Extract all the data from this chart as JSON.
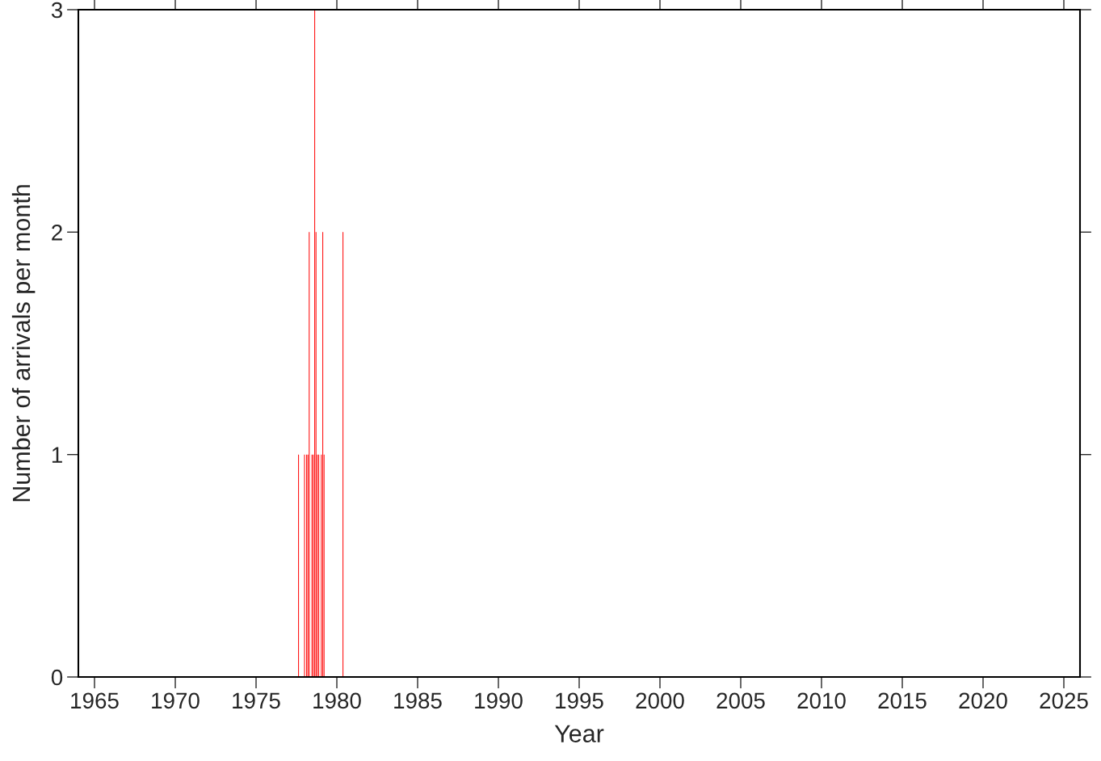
{
  "chart_data": {
    "type": "bar",
    "xlabel": "Year",
    "ylabel": "Number of arrivals per month",
    "x": [
      1977.63,
      1978.0,
      1978.13,
      1978.21,
      1978.29,
      1978.46,
      1978.54,
      1978.63,
      1978.71,
      1978.79,
      1978.88,
      1979.04,
      1979.13,
      1979.21,
      1980.38
    ],
    "values": [
      1,
      1,
      1,
      1,
      2,
      1,
      1,
      3,
      2,
      1,
      1,
      1,
      2,
      1,
      2
    ],
    "color": "#ff0000",
    "xlim": [
      1964,
      2026
    ],
    "xticks": [
      1965,
      1970,
      1975,
      1980,
      1985,
      1990,
      1995,
      2000,
      2005,
      2010,
      2015,
      2020,
      2025
    ],
    "ylim": [
      0,
      3
    ],
    "yticks": [
      0,
      1,
      2,
      3
    ],
    "grid": false
  }
}
